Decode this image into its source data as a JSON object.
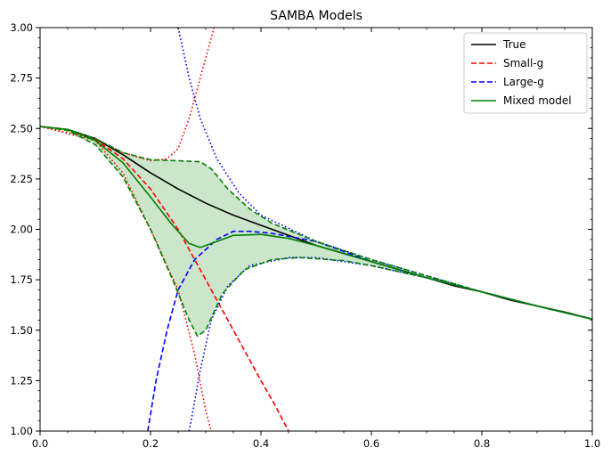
{
  "chart_data": {
    "type": "line",
    "title": "SAMBA Models",
    "xlabel": "",
    "ylabel": "",
    "xlim": [
      0.0,
      1.0
    ],
    "ylim": [
      1.0,
      3.0
    ],
    "xticks": [
      "0.0",
      "0.2",
      "0.4",
      "0.6",
      "0.8",
      "1.0"
    ],
    "yticks": [
      "1.00",
      "1.25",
      "1.50",
      "1.75",
      "2.00",
      "2.25",
      "2.50",
      "2.75",
      "3.00"
    ],
    "grid": false,
    "legend_position": "top-right",
    "legend": [
      {
        "label": "True",
        "color": "#000000",
        "style": "solid"
      },
      {
        "label": "Small-g",
        "color": "#ff0000",
        "style": "dashed"
      },
      {
        "label": "Large-g",
        "color": "#0000ff",
        "style": "dashed"
      },
      {
        "label": "Mixed model",
        "color": "#008000",
        "style": "solid"
      }
    ],
    "series": [
      {
        "name": "True",
        "color": "#000000",
        "style": "solid",
        "width": 1.6,
        "points": [
          [
            0.0,
            2.51
          ],
          [
            0.05,
            2.495
          ],
          [
            0.1,
            2.45
          ],
          [
            0.15,
            2.37
          ],
          [
            0.2,
            2.28
          ],
          [
            0.25,
            2.2
          ],
          [
            0.3,
            2.13
          ],
          [
            0.35,
            2.07
          ],
          [
            0.4,
            2.02
          ],
          [
            0.45,
            1.97
          ],
          [
            0.5,
            1.92
          ],
          [
            0.55,
            1.88
          ],
          [
            0.6,
            1.84
          ],
          [
            0.65,
            1.8
          ],
          [
            0.7,
            1.76
          ],
          [
            0.75,
            1.72
          ],
          [
            0.8,
            1.69
          ],
          [
            0.85,
            1.65
          ],
          [
            0.9,
            1.62
          ],
          [
            0.95,
            1.59
          ],
          [
            1.0,
            1.555
          ]
        ]
      },
      {
        "name": "Small-g",
        "color": "#ff0000",
        "style": "dashed",
        "width": 1.6,
        "points": [
          [
            0.0,
            2.51
          ],
          [
            0.05,
            2.495
          ],
          [
            0.1,
            2.445
          ],
          [
            0.15,
            2.35
          ],
          [
            0.2,
            2.2
          ],
          [
            0.25,
            2.0
          ],
          [
            0.3,
            1.75
          ],
          [
            0.35,
            1.5
          ],
          [
            0.4,
            1.25
          ],
          [
            0.425,
            1.13
          ],
          [
            0.45,
            1.0
          ]
        ]
      },
      {
        "name": "Large-g",
        "color": "#0000ff",
        "style": "dashed",
        "width": 1.6,
        "points": [
          [
            0.195,
            1.0
          ],
          [
            0.21,
            1.25
          ],
          [
            0.23,
            1.5
          ],
          [
            0.25,
            1.7
          ],
          [
            0.28,
            1.85
          ],
          [
            0.32,
            1.95
          ],
          [
            0.35,
            1.99
          ],
          [
            0.38,
            1.99
          ],
          [
            0.42,
            1.98
          ],
          [
            0.5,
            1.94
          ],
          [
            0.6,
            1.84
          ],
          [
            0.7,
            1.76
          ],
          [
            0.8,
            1.69
          ],
          [
            0.9,
            1.62
          ],
          [
            1.0,
            1.555
          ]
        ]
      },
      {
        "name": "Small-g upper bound",
        "color": "#ff0000",
        "style": "dotted",
        "width": 1.6,
        "points": [
          [
            0.0,
            2.51
          ],
          [
            0.1,
            2.45
          ],
          [
            0.15,
            2.38
          ],
          [
            0.2,
            2.34
          ],
          [
            0.23,
            2.35
          ],
          [
            0.25,
            2.4
          ],
          [
            0.27,
            2.55
          ],
          [
            0.29,
            2.75
          ],
          [
            0.31,
            2.95
          ],
          [
            0.315,
            3.0
          ]
        ]
      },
      {
        "name": "Small-g lower bound",
        "color": "#ff0000",
        "style": "dotted",
        "width": 1.6,
        "points": [
          [
            0.0,
            2.51
          ],
          [
            0.1,
            2.44
          ],
          [
            0.15,
            2.28
          ],
          [
            0.2,
            2.0
          ],
          [
            0.25,
            1.7
          ],
          [
            0.28,
            1.38
          ],
          [
            0.3,
            1.1
          ],
          [
            0.31,
            1.0
          ]
        ]
      },
      {
        "name": "Large-g upper bound",
        "color": "#0000ff",
        "style": "dotted",
        "width": 1.6,
        "points": [
          [
            0.25,
            3.0
          ],
          [
            0.27,
            2.75
          ],
          [
            0.29,
            2.55
          ],
          [
            0.32,
            2.35
          ],
          [
            0.36,
            2.18
          ],
          [
            0.4,
            2.07
          ],
          [
            0.5,
            1.94
          ],
          [
            0.6,
            1.85
          ],
          [
            0.7,
            1.77
          ],
          [
            0.8,
            1.69
          ],
          [
            0.9,
            1.62
          ],
          [
            1.0,
            1.555
          ]
        ]
      },
      {
        "name": "Large-g lower bound",
        "color": "#0000ff",
        "style": "dotted",
        "width": 1.6,
        "points": [
          [
            0.27,
            1.0
          ],
          [
            0.29,
            1.3
          ],
          [
            0.31,
            1.55
          ],
          [
            0.34,
            1.72
          ],
          [
            0.38,
            1.82
          ],
          [
            0.45,
            1.86
          ],
          [
            0.5,
            1.86
          ],
          [
            0.6,
            1.82
          ],
          [
            0.7,
            1.76
          ],
          [
            0.8,
            1.69
          ],
          [
            0.9,
            1.62
          ],
          [
            1.0,
            1.555
          ]
        ]
      },
      {
        "name": "Mixed model",
        "color": "#008000",
        "style": "solid",
        "width": 1.6,
        "points": [
          [
            0.0,
            2.51
          ],
          [
            0.05,
            2.495
          ],
          [
            0.1,
            2.44
          ],
          [
            0.15,
            2.33
          ],
          [
            0.2,
            2.16
          ],
          [
            0.24,
            2.02
          ],
          [
            0.27,
            1.93
          ],
          [
            0.29,
            1.91
          ],
          [
            0.31,
            1.93
          ],
          [
            0.35,
            1.97
          ],
          [
            0.4,
            1.975
          ],
          [
            0.45,
            1.955
          ],
          [
            0.5,
            1.92
          ],
          [
            0.6,
            1.84
          ],
          [
            0.7,
            1.76
          ],
          [
            0.8,
            1.69
          ],
          [
            0.9,
            1.62
          ],
          [
            1.0,
            1.555
          ]
        ]
      },
      {
        "name": "Mixed upper bound",
        "color": "#008000",
        "style": "dashed",
        "width": 1.6,
        "points": [
          [
            0.0,
            2.51
          ],
          [
            0.05,
            2.495
          ],
          [
            0.1,
            2.45
          ],
          [
            0.15,
            2.38
          ],
          [
            0.2,
            2.345
          ],
          [
            0.25,
            2.34
          ],
          [
            0.29,
            2.335
          ],
          [
            0.31,
            2.3
          ],
          [
            0.34,
            2.2
          ],
          [
            0.38,
            2.1
          ],
          [
            0.42,
            2.03
          ],
          [
            0.5,
            1.94
          ],
          [
            0.6,
            1.85
          ],
          [
            0.7,
            1.77
          ],
          [
            0.8,
            1.69
          ],
          [
            0.9,
            1.62
          ],
          [
            1.0,
            1.555
          ]
        ]
      },
      {
        "name": "Mixed lower bound",
        "color": "#008000",
        "style": "dashed",
        "width": 1.6,
        "points": [
          [
            0.0,
            2.51
          ],
          [
            0.05,
            2.49
          ],
          [
            0.1,
            2.42
          ],
          [
            0.15,
            2.26
          ],
          [
            0.2,
            2.0
          ],
          [
            0.24,
            1.75
          ],
          [
            0.27,
            1.55
          ],
          [
            0.285,
            1.47
          ],
          [
            0.3,
            1.5
          ],
          [
            0.33,
            1.68
          ],
          [
            0.37,
            1.8
          ],
          [
            0.42,
            1.85
          ],
          [
            0.47,
            1.86
          ],
          [
            0.55,
            1.845
          ],
          [
            0.6,
            1.82
          ],
          [
            0.7,
            1.76
          ],
          [
            0.8,
            1.69
          ],
          [
            0.9,
            1.62
          ],
          [
            1.0,
            1.555
          ]
        ]
      }
    ],
    "band": {
      "color": "#008000",
      "opacity": 0.2,
      "upper": "Mixed upper bound",
      "lower": "Mixed lower bound"
    }
  }
}
